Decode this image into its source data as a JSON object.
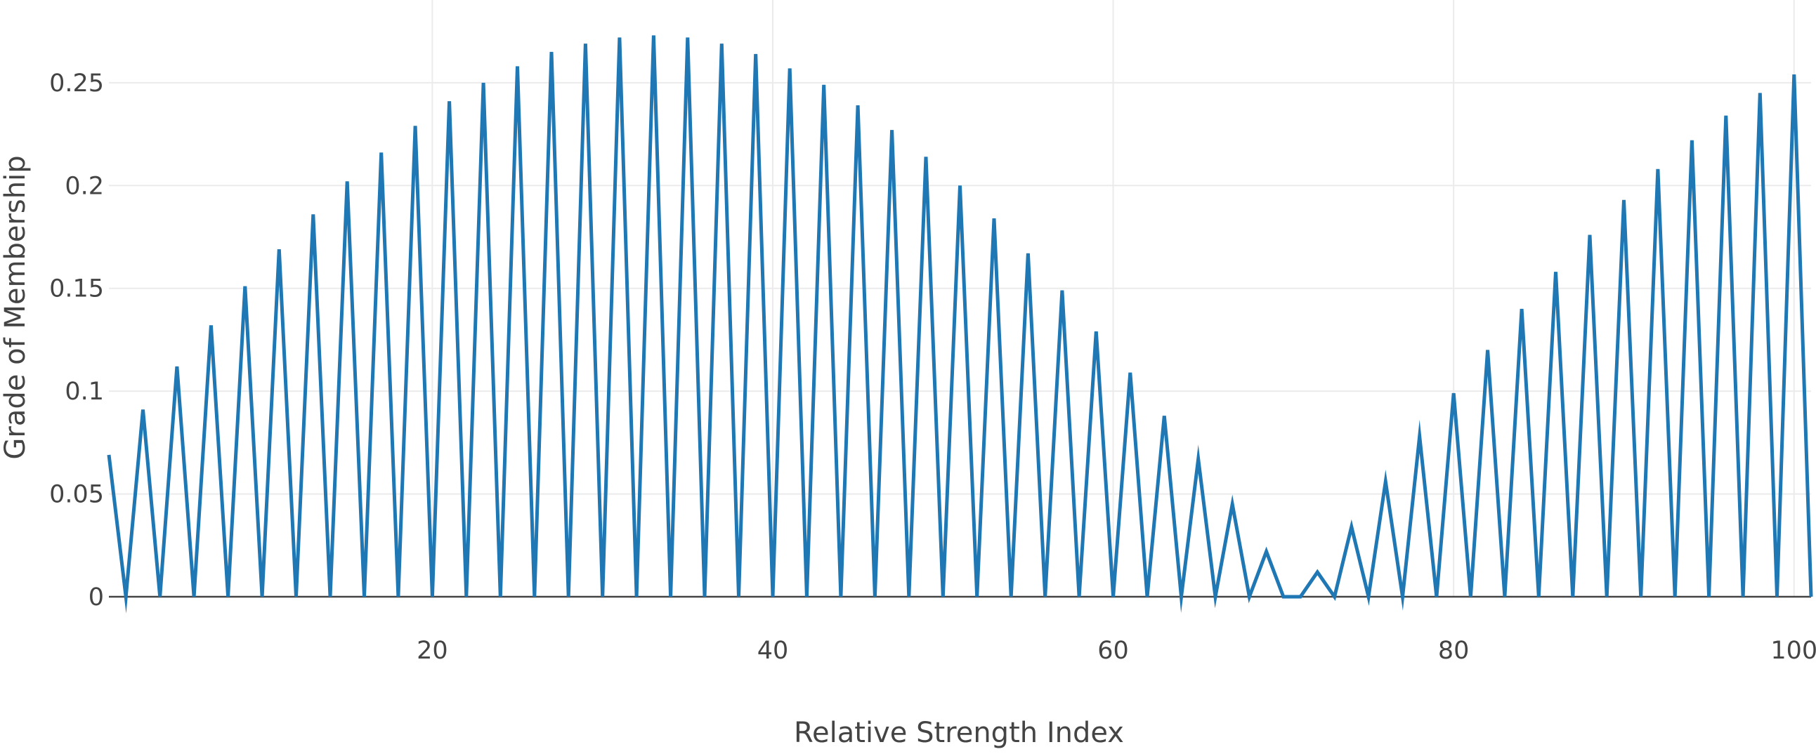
{
  "chart_data": {
    "type": "line",
    "title": "",
    "xlabel": "Relative Strength Index",
    "ylabel": "Grade of Membership",
    "xlim": [
      1,
      101
    ],
    "ylim": [
      0,
      0.28
    ],
    "x_ticks": [
      20,
      40,
      60,
      80,
      100
    ],
    "y_ticks": [
      0,
      0.05,
      0.1,
      0.15,
      0.2,
      0.25
    ],
    "x_tick_labels": [
      "20",
      "40",
      "60",
      "80",
      "100"
    ],
    "y_tick_labels": [
      "0",
      "0.05",
      "0.1",
      "0.15",
      "0.2",
      "0.25"
    ],
    "grid": true,
    "legend": "none",
    "series": [
      {
        "color": "#1f77b4",
        "x": [
          1,
          2,
          3,
          4,
          5,
          6,
          7,
          8,
          9,
          10,
          11,
          12,
          13,
          14,
          15,
          16,
          17,
          18,
          19,
          20,
          21,
          22,
          23,
          24,
          25,
          26,
          27,
          28,
          29,
          30,
          31,
          32,
          33,
          34,
          35,
          36,
          37,
          38,
          39,
          40,
          41,
          42,
          43,
          44,
          45,
          46,
          47,
          48,
          49,
          50,
          51,
          52,
          53,
          54,
          55,
          56,
          57,
          58,
          59,
          60,
          61,
          62,
          63,
          64,
          65,
          66,
          67,
          68,
          69,
          70,
          71,
          72,
          73,
          74,
          75,
          76,
          77,
          78,
          79,
          80,
          81,
          82,
          83,
          84,
          85,
          86,
          87,
          88,
          89,
          90,
          91,
          92,
          93,
          94,
          95,
          96,
          97,
          98,
          99,
          100,
          101
        ],
        "values": [
          0.069,
          0,
          0.091,
          0,
          0.112,
          0,
          0.132,
          0,
          0.151,
          0,
          0.169,
          0,
          0.186,
          0,
          0.202,
          0,
          0.216,
          0,
          0.229,
          0,
          0.241,
          0,
          0.25,
          0,
          0.258,
          0,
          0.265,
          0,
          0.269,
          0,
          0.272,
          0,
          0.273,
          0,
          0.272,
          0,
          0.269,
          0,
          0.264,
          0,
          0.257,
          0,
          0.249,
          0,
          0.239,
          0,
          0.227,
          0,
          0.214,
          0,
          0.2,
          0,
          0.184,
          0,
          0.167,
          0,
          0.149,
          0,
          0.129,
          0,
          0.109,
          0,
          0.088,
          0,
          0.067,
          0,
          0.045,
          0,
          0.022,
          0,
          0,
          0.012,
          0,
          0.034,
          0,
          0.056,
          0,
          0.078,
          0,
          0.099,
          0,
          0.12,
          0,
          0.14,
          0,
          0.158,
          0,
          0.176,
          0,
          0.193,
          0,
          0.208,
          0,
          0.222,
          0,
          0.234,
          0,
          0.245,
          0,
          0.254,
          0
        ]
      }
    ]
  }
}
